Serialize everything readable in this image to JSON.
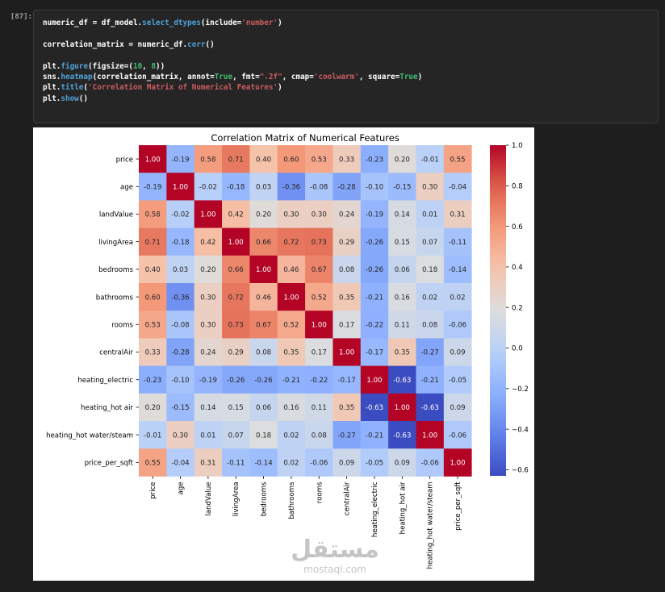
{
  "cell": {
    "prompt": "[87]:",
    "code_lines": [
      [
        {
          "t": "numeric_df = df_model."
        },
        {
          "t": "select_dtypes",
          "c": "fn"
        },
        {
          "t": "(include="
        },
        {
          "t": "'number'",
          "c": "str"
        },
        {
          "t": ")"
        }
      ],
      [],
      [
        {
          "t": "correlation_matrix = numeric_df."
        },
        {
          "t": "corr",
          "c": "fn"
        },
        {
          "t": "()"
        }
      ],
      [],
      [
        {
          "t": "plt."
        },
        {
          "t": "figure",
          "c": "fn"
        },
        {
          "t": "(figsize=("
        },
        {
          "t": "10",
          "c": "num"
        },
        {
          "t": ", "
        },
        {
          "t": "8",
          "c": "num"
        },
        {
          "t": "))"
        }
      ],
      [
        {
          "t": "sns."
        },
        {
          "t": "heatmap",
          "c": "fn"
        },
        {
          "t": "(correlation_matrix, annot="
        },
        {
          "t": "True",
          "c": "kw"
        },
        {
          "t": ", fmt="
        },
        {
          "t": "\".2f\"",
          "c": "str"
        },
        {
          "t": ", cmap="
        },
        {
          "t": "'coolwarm'",
          "c": "str"
        },
        {
          "t": ", square="
        },
        {
          "t": "True",
          "c": "kw"
        },
        {
          "t": ")"
        }
      ],
      [
        {
          "t": "plt."
        },
        {
          "t": "title",
          "c": "fn"
        },
        {
          "t": "("
        },
        {
          "t": "'Correlation Matrix of Numerical Features'",
          "c": "str"
        },
        {
          "t": ")"
        }
      ],
      [
        {
          "t": "plt."
        },
        {
          "t": "show",
          "c": "fn"
        },
        {
          "t": "()"
        }
      ]
    ]
  },
  "watermark": {
    "arabic": "مستقل",
    "latin": "mostaql.com"
  },
  "chart_data": {
    "type": "heatmap",
    "title": "Correlation Matrix of Numerical Features",
    "labels": [
      "price",
      "age",
      "landValue",
      "livingArea",
      "bedrooms",
      "bathrooms",
      "rooms",
      "centralAir",
      "heating_electric",
      "heating_hot air",
      "heating_hot water/steam",
      "price_per_sqft"
    ],
    "matrix": [
      [
        1.0,
        -0.19,
        0.58,
        0.71,
        0.4,
        0.6,
        0.53,
        0.33,
        -0.23,
        0.2,
        -0.01,
        0.55
      ],
      [
        -0.19,
        1.0,
        -0.02,
        -0.18,
        0.03,
        -0.36,
        -0.08,
        -0.28,
        -0.1,
        -0.15,
        0.3,
        -0.04
      ],
      [
        0.58,
        -0.02,
        1.0,
        0.42,
        0.2,
        0.3,
        0.3,
        0.24,
        -0.19,
        0.14,
        0.01,
        0.31
      ],
      [
        0.71,
        -0.18,
        0.42,
        1.0,
        0.66,
        0.72,
        0.73,
        0.29,
        -0.26,
        0.15,
        0.07,
        -0.11
      ],
      [
        0.4,
        0.03,
        0.2,
        0.66,
        1.0,
        0.46,
        0.67,
        0.08,
        -0.26,
        0.06,
        0.18,
        -0.14
      ],
      [
        0.6,
        -0.36,
        0.3,
        0.72,
        0.46,
        1.0,
        0.52,
        0.35,
        -0.21,
        0.16,
        0.02,
        0.02
      ],
      [
        0.53,
        -0.08,
        0.3,
        0.73,
        0.67,
        0.52,
        1.0,
        0.17,
        -0.22,
        0.11,
        0.08,
        -0.06
      ],
      [
        0.33,
        -0.28,
        0.24,
        0.29,
        0.08,
        0.35,
        0.17,
        1.0,
        -0.17,
        0.35,
        -0.27,
        0.09
      ],
      [
        -0.23,
        -0.1,
        -0.19,
        -0.26,
        -0.26,
        -0.21,
        -0.22,
        -0.17,
        1.0,
        -0.63,
        -0.21,
        -0.05
      ],
      [
        0.2,
        -0.15,
        0.14,
        0.15,
        0.06,
        0.16,
        0.11,
        0.35,
        -0.63,
        1.0,
        -0.63,
        0.09
      ],
      [
        -0.01,
        0.3,
        0.01,
        0.07,
        0.18,
        0.02,
        0.08,
        -0.27,
        -0.21,
        -0.63,
        1.0,
        -0.06
      ],
      [
        0.55,
        -0.04,
        0.31,
        -0.11,
        -0.14,
        0.02,
        -0.06,
        0.09,
        -0.05,
        0.09,
        -0.06,
        1.0
      ]
    ],
    "cmap": "coolwarm",
    "vmin": -0.63,
    "vmax": 1.0,
    "colorbar_ticks": [
      1.0,
      0.8,
      0.6,
      0.4,
      0.2,
      0.0,
      -0.2,
      -0.4,
      -0.6
    ],
    "colorbar_tick_labels": [
      "1.0",
      "0.8",
      "0.6",
      "0.4",
      "0.2",
      "0.0",
      "−0.2",
      "−0.4",
      "−0.6"
    ],
    "annot_format": ".2f"
  }
}
